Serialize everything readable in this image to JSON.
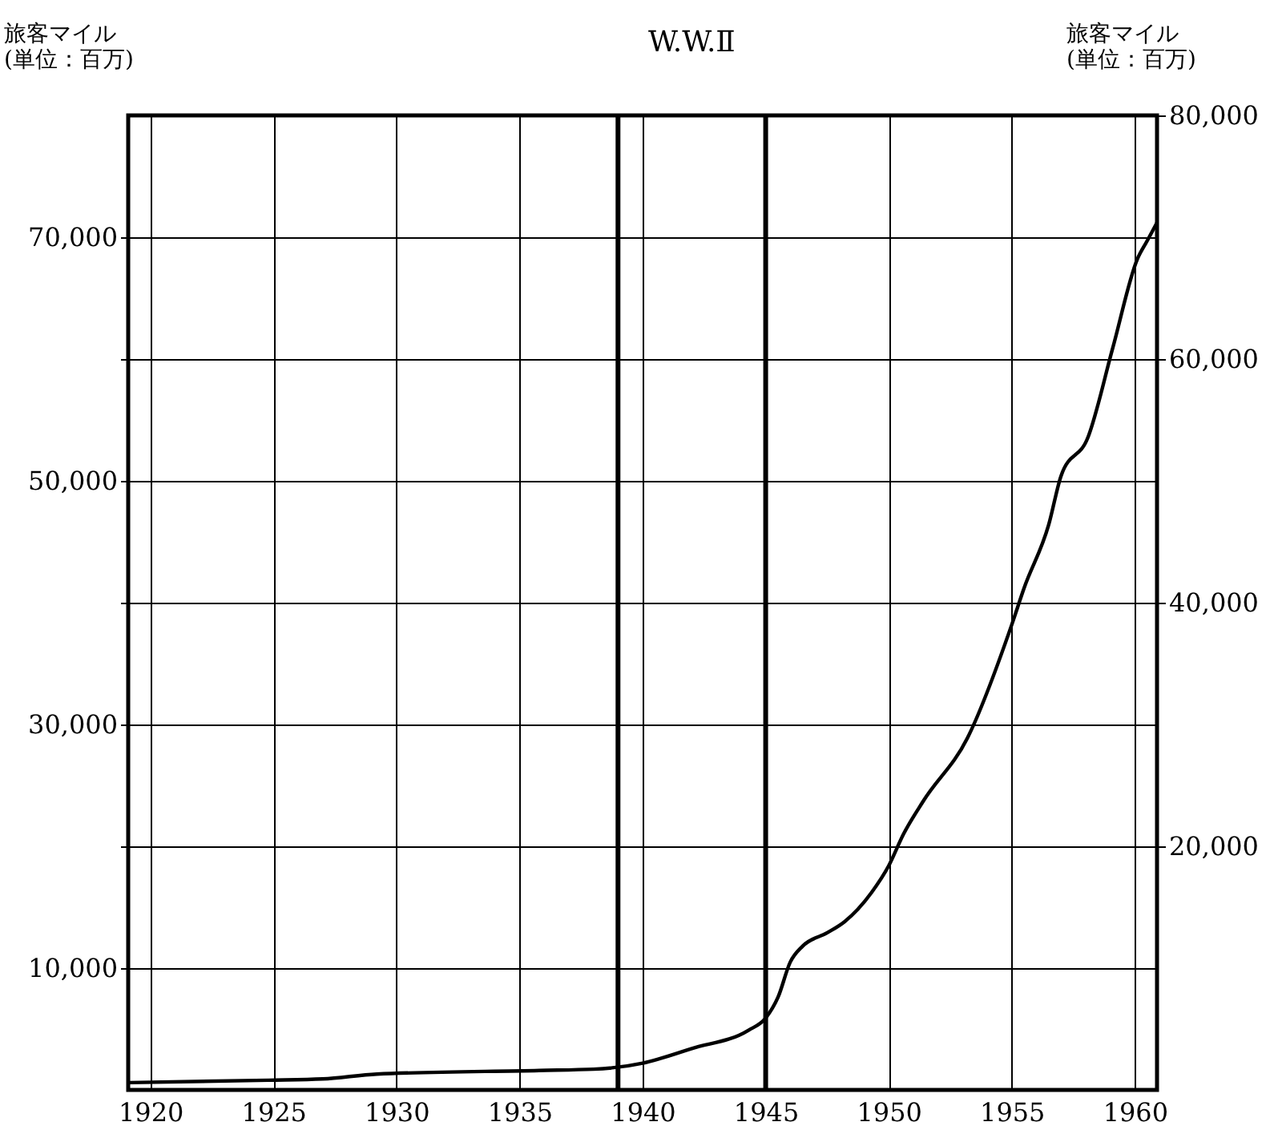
{
  "chart_data": {
    "type": "line",
    "ylabel": "旅客マイル\n(単位：百万)",
    "y2label": "旅客マイル\n(単位：百万)",
    "x": [
      1919.1,
      1924.8,
      1927,
      1929.2,
      1935.8,
      1938,
      1940,
      1942,
      1944.3,
      1945,
      1945.5,
      1946,
      1946.5,
      1947.5,
      1948.2,
      1949.3,
      1950,
      1950.6,
      1951.4,
      1953.2,
      1955,
      1955.5,
      1956.5,
      1957,
      1958.1,
      1959.1,
      1960.1,
      1960.5,
      1960.9
    ],
    "series": [
      {
        "color": "#000000",
        "values": [
          600,
          800,
          900,
          1300,
          1600,
          1700,
          2200,
          3400,
          4900,
          5900,
          7600,
          10500,
          11800,
          12900,
          13800,
          16200,
          18400,
          21000,
          23700,
          28900,
          38200,
          41200,
          46400,
          50400,
          53600,
          60900,
          68200,
          69700,
          71200
        ]
      }
    ],
    "xlim": [
      1919.1,
      1960.9
    ],
    "xticks": [
      1920,
      1925,
      1930,
      1935,
      1940,
      1945,
      1950,
      1955,
      1960
    ],
    "ylim": [
      0,
      80000
    ],
    "yticks": [
      {
        "value": 10000,
        "label": "10,000"
      },
      {
        "value": 20000,
        "label": null
      },
      {
        "value": 30000,
        "label": "30,000"
      },
      {
        "value": 40000,
        "label": null
      },
      {
        "value": 50000,
        "label": "50,000"
      },
      {
        "value": 60000,
        "label": null
      },
      {
        "value": 70000,
        "label": "70,000"
      }
    ],
    "y2lim": [
      0,
      80000
    ],
    "y2ticks": [
      {
        "value": 20000,
        "label": "20,000"
      },
      {
        "value": 40000,
        "label": "40,000"
      },
      {
        "value": 60000,
        "label": "60,000"
      },
      {
        "value": 80000,
        "label": "80,000"
      }
    ],
    "ref_lines": [
      {
        "axis": "x",
        "value": 1939
      },
      {
        "axis": "x",
        "value": 1945
      }
    ],
    "annotations": [
      "W.W.Ⅱ"
    ],
    "grid": true,
    "marker": "none",
    "line_style": "solid"
  }
}
